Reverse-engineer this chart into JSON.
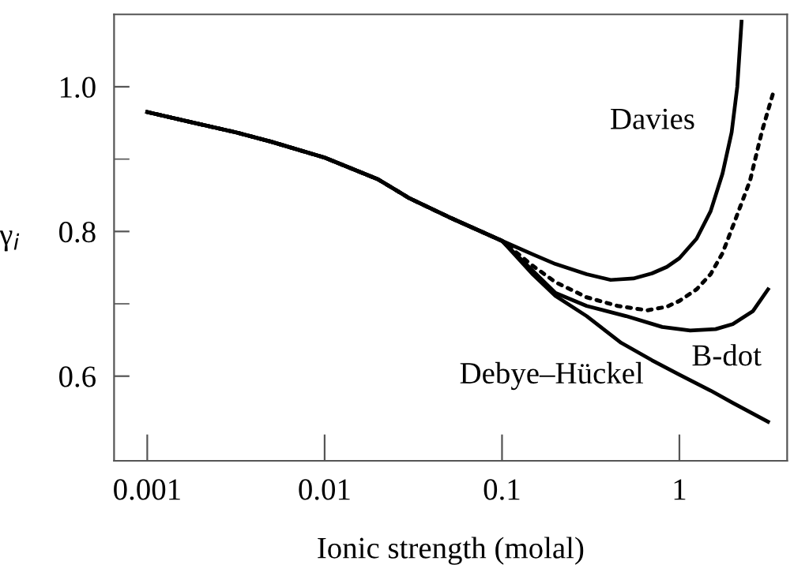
{
  "chart_data": {
    "type": "line",
    "xlabel": "Ionic strength (molal)",
    "ylabel": "γ$_{i}$",
    "log": "x",
    "xlim": [
      0.00065,
      4.05
    ],
    "ylim": [
      0.483,
      1.1
    ],
    "xticks": [
      0.001,
      0.01,
      0.1,
      1
    ],
    "yticks": [
      0.6,
      {
        "value": 0.7,
        "label": null
      },
      0.8,
      {
        "value": 0.9,
        "label": null
      },
      {
        "value": 1.0,
        "label": "1.0"
      }
    ],
    "grid": false,
    "legend": false,
    "marker": "none",
    "series": [
      {
        "name": "Davies",
        "color": "#000000",
        "line_style": "solid",
        "x": [
          0.001,
          0.002,
          0.00316,
          0.005,
          0.01,
          0.02,
          0.03,
          0.05,
          0.1,
          0.15,
          0.2,
          0.3,
          0.41,
          0.55,
          0.7,
          0.85,
          1,
          1.25,
          1.5,
          1.75,
          1.97,
          2.12,
          2.24
        ],
        "values": [
          0.965,
          0.948,
          0.937,
          0.924,
          0.902,
          0.872,
          0.846,
          0.82,
          0.787,
          0.768,
          0.755,
          0.741,
          0.733,
          0.735,
          0.742,
          0.751,
          0.763,
          0.79,
          0.828,
          0.88,
          0.937,
          1.0,
          1.09
        ]
      },
      {
        "color": "#000000",
        "line_style": "dotted",
        "x": [
          0.001,
          0.002,
          0.00316,
          0.005,
          0.01,
          0.02,
          0.03,
          0.05,
          0.1,
          0.15,
          0.2,
          0.3,
          0.45,
          0.66,
          0.85,
          1,
          1.25,
          1.5,
          1.75,
          2,
          2.5,
          2.91,
          3.4
        ],
        "values": [
          0.965,
          0.948,
          0.937,
          0.924,
          0.902,
          0.872,
          0.846,
          0.82,
          0.787,
          0.752,
          0.73,
          0.709,
          0.697,
          0.691,
          0.696,
          0.704,
          0.72,
          0.741,
          0.77,
          0.807,
          0.87,
          0.937,
          0.994
        ]
      },
      {
        "name": "B-dot",
        "color": "#000000",
        "line_style": "solid",
        "x": [
          0.001,
          0.002,
          0.00316,
          0.005,
          0.01,
          0.02,
          0.03,
          0.05,
          0.1,
          0.15,
          0.2,
          0.3,
          0.5,
          0.8,
          1.15,
          1.6,
          2,
          2.6,
          3.16
        ],
        "values": [
          0.965,
          0.948,
          0.937,
          0.924,
          0.902,
          0.872,
          0.846,
          0.82,
          0.787,
          0.745,
          0.715,
          0.697,
          0.683,
          0.668,
          0.663,
          0.665,
          0.672,
          0.69,
          0.72
        ]
      },
      {
        "name": "Debye–Hückel",
        "color": "#000000",
        "line_style": "solid",
        "x": [
          0.001,
          0.002,
          0.00316,
          0.005,
          0.01,
          0.02,
          0.03,
          0.05,
          0.1,
          0.15,
          0.2,
          0.3,
          0.47,
          0.7,
          1,
          1.5,
          2,
          3.16
        ],
        "values": [
          0.965,
          0.948,
          0.937,
          0.924,
          0.902,
          0.872,
          0.846,
          0.82,
          0.787,
          0.74,
          0.711,
          0.683,
          0.646,
          0.622,
          0.602,
          0.58,
          0.563,
          0.537
        ]
      }
    ]
  }
}
